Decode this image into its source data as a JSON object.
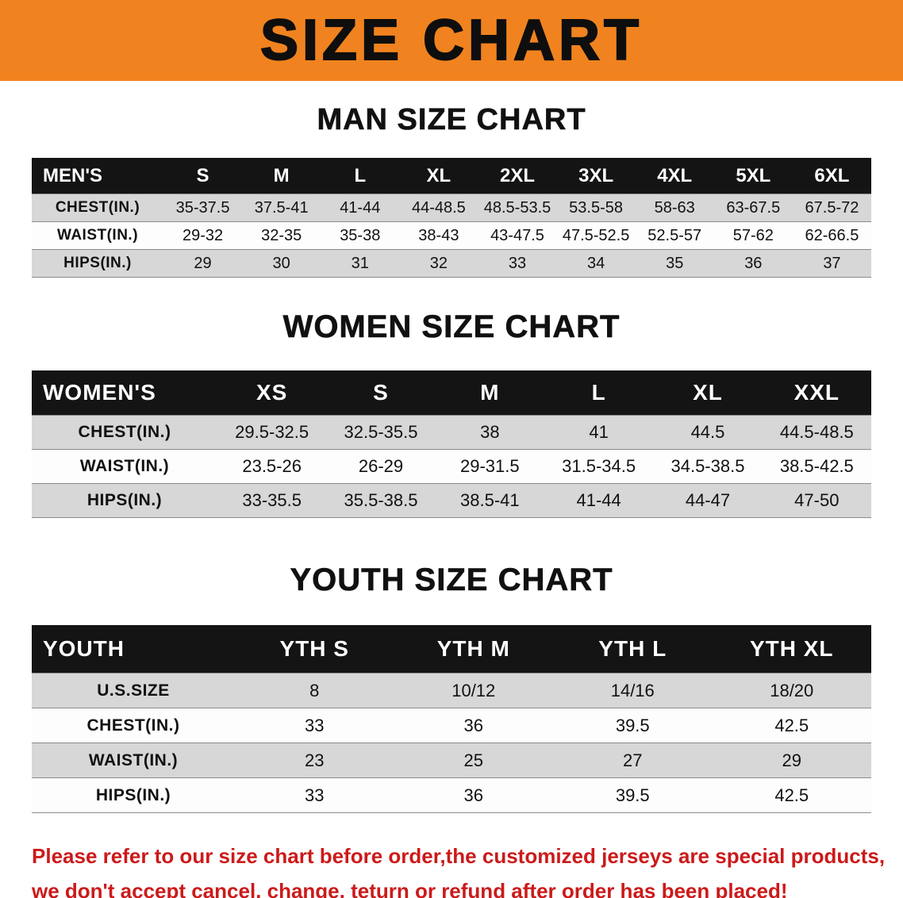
{
  "banner": {
    "title": "SIZE CHART"
  },
  "colors": {
    "banner_bg": "#F0831F",
    "header_bg": "#141414",
    "row_alt_bg": "#D7D7D7",
    "disclaimer_red": "#CC1A1A"
  },
  "sections": [
    {
      "id": "men",
      "heading": "MAN SIZE CHART",
      "table": {
        "header": [
          "MEN'S",
          "S",
          "M",
          "L",
          "XL",
          "2XL",
          "3XL",
          "4XL",
          "5XL",
          "6XL"
        ],
        "rows": [
          {
            "label": "CHEST(IN.)",
            "values": [
              "35-37.5",
              "37.5-41",
              "41-44",
              "44-48.5",
              "48.5-53.5",
              "53.5-58",
              "58-63",
              "63-67.5",
              "67.5-72"
            ]
          },
          {
            "label": "WAIST(IN.)",
            "values": [
              "29-32",
              "32-35",
              "35-38",
              "38-43",
              "43-47.5",
              "47.5-52.5",
              "52.5-57",
              "57-62",
              "62-66.5"
            ]
          },
          {
            "label": "HIPS(IN.)",
            "values": [
              "29",
              "30",
              "31",
              "32",
              "33",
              "34",
              "35",
              "36",
              "37"
            ]
          }
        ]
      }
    },
    {
      "id": "women",
      "heading": "WOMEN SIZE CHART",
      "table": {
        "header": [
          "WOMEN'S",
          "XS",
          "S",
          "M",
          "L",
          "XL",
          "XXL"
        ],
        "rows": [
          {
            "label": "CHEST(IN.)",
            "values": [
              "29.5-32.5",
              "32.5-35.5",
              "38",
              "41",
              "44.5",
              "44.5-48.5"
            ]
          },
          {
            "label": "WAIST(IN.)",
            "values": [
              "23.5-26",
              "26-29",
              "29-31.5",
              "31.5-34.5",
              "34.5-38.5",
              "38.5-42.5"
            ]
          },
          {
            "label": "HIPS(IN.)",
            "values": [
              "33-35.5",
              "35.5-38.5",
              "38.5-41",
              "41-44",
              "44-47",
              "47-50"
            ]
          }
        ]
      }
    },
    {
      "id": "youth",
      "heading": "YOUTH SIZE CHART",
      "table": {
        "header": [
          "YOUTH",
          "YTH S",
          "YTH M",
          "YTH L",
          "YTH XL"
        ],
        "rows": [
          {
            "label": "U.S.SIZE",
            "values": [
              "8",
              "10/12",
              "14/16",
              "18/20"
            ]
          },
          {
            "label": "CHEST(IN.)",
            "values": [
              "33",
              "36",
              "39.5",
              "42.5"
            ]
          },
          {
            "label": "WAIST(IN.)",
            "values": [
              "23",
              "25",
              "27",
              "29"
            ]
          },
          {
            "label": "HIPS(IN.)",
            "values": [
              "33",
              "36",
              "39.5",
              "42.5"
            ]
          }
        ]
      }
    }
  ],
  "disclaimer": {
    "line1": "Please refer to our size chart before order,the customized jerseys are special products,",
    "line2": "we don't accept cancel, change, teturn or refund after order has been placed!"
  }
}
